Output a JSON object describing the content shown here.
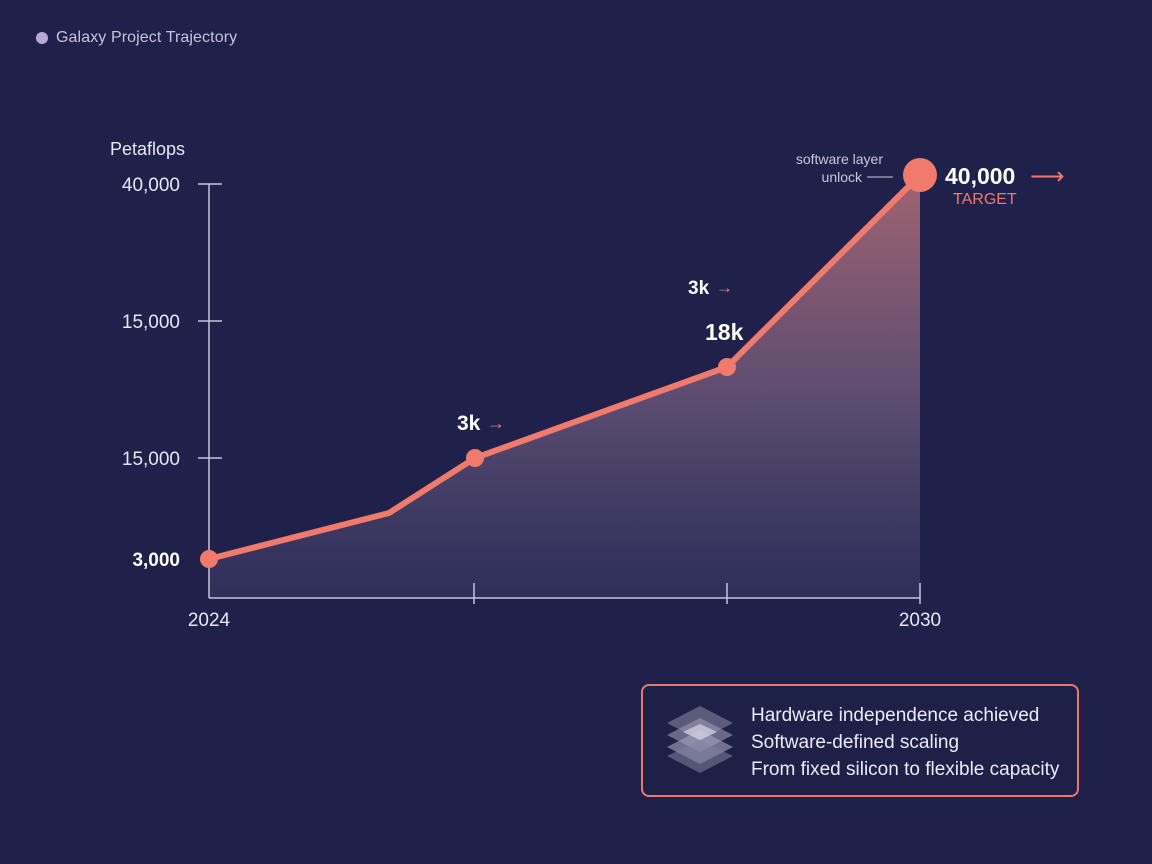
{
  "header": {
    "title": "Galaxy Project Trajectory"
  },
  "colors": {
    "background": "#1f214a",
    "line": "#f07a6c",
    "axis": "#c9c6d8",
    "accent": "#f07a6c"
  },
  "chart_data": {
    "type": "area",
    "title": "",
    "ylabel": "Petaflops",
    "xlabel": "",
    "x_tick_labels": [
      "2024",
      "2030"
    ],
    "y_tick_labels": [
      "40,000",
      "15,000",
      "15,000",
      "3,000"
    ],
    "series": [
      {
        "points": [
          {
            "x": "2024",
            "y": 3000
          },
          {
            "x": "",
            "y": 7000
          },
          {
            "x": "",
            "y": 15000
          },
          {
            "x": "",
            "y": 18000
          },
          {
            "x": "2030",
            "y": 40000
          }
        ]
      }
    ],
    "annotations": {
      "label_3k_low": "3k",
      "label_3k_high": "3k",
      "label_18k": "18k",
      "end_value": "40,000",
      "end_sub": "TARGET",
      "note": [
        "software layer",
        "unlock"
      ]
    },
    "grid": false
  },
  "legend": {
    "lines": [
      "Hardware independence achieved",
      "Software-defined scaling",
      "From fixed silicon to flexible capacity"
    ],
    "icon": "layers-icon"
  }
}
